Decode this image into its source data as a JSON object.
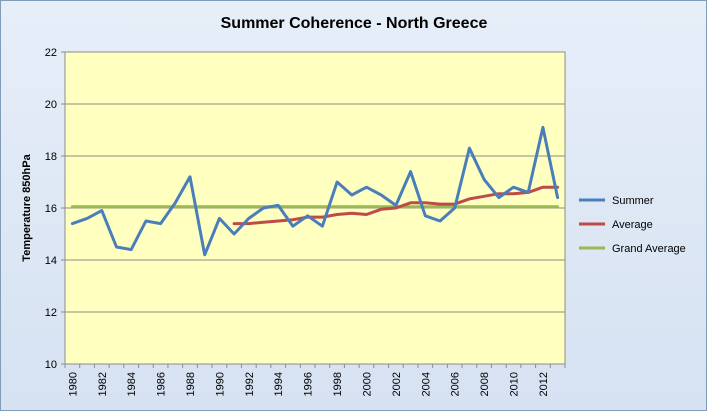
{
  "chart_data": {
    "type": "line",
    "title": "Summer Coherence - North Greece",
    "ylabel": "Temperature 850hPa",
    "xlabel": "",
    "ylim": [
      10,
      22
    ],
    "yticks": [
      "10",
      "12",
      "14",
      "16",
      "18",
      "20",
      "22"
    ],
    "x": [
      1980,
      1981,
      1982,
      1983,
      1984,
      1985,
      1986,
      1987,
      1988,
      1989,
      1990,
      1991,
      1992,
      1993,
      1994,
      1995,
      1996,
      1997,
      1998,
      1999,
      2000,
      2001,
      2002,
      2003,
      2004,
      2005,
      2006,
      2007,
      2008,
      2009,
      2010,
      2011,
      2012,
      2013
    ],
    "xtick_labels": [
      "1980",
      "1982",
      "1984",
      "1986",
      "1988",
      "1990",
      "1992",
      "1994",
      "1996",
      "1998",
      "2000",
      "2002",
      "2004",
      "2006",
      "2008",
      "2010",
      "2012"
    ],
    "series": [
      {
        "name": "Summer",
        "color": "#4a7ebb",
        "values": [
          15.4,
          15.6,
          15.9,
          14.5,
          14.4,
          15.5,
          15.4,
          16.2,
          17.2,
          14.2,
          15.6,
          15.0,
          15.6,
          16.0,
          16.1,
          15.3,
          15.7,
          15.3,
          17.0,
          16.5,
          16.8,
          16.5,
          16.1,
          17.4,
          15.7,
          15.5,
          16.0,
          18.3,
          17.1,
          16.4,
          16.8,
          16.6,
          19.1,
          16.4
        ]
      },
      {
        "name": "Average",
        "color": "#be4b48",
        "values": [
          null,
          null,
          null,
          null,
          null,
          null,
          null,
          null,
          null,
          null,
          null,
          15.4,
          15.4,
          15.45,
          15.5,
          15.55,
          15.65,
          15.65,
          15.75,
          15.8,
          15.75,
          15.95,
          16.0,
          16.2,
          16.2,
          16.15,
          16.15,
          16.35,
          16.45,
          16.55,
          16.55,
          16.6,
          16.8,
          16.8
        ]
      },
      {
        "name": "Grand Average",
        "color": "#98b954",
        "values": [
          16.05,
          16.05,
          16.05,
          16.05,
          16.05,
          16.05,
          16.05,
          16.05,
          16.05,
          16.05,
          16.05,
          16.05,
          16.05,
          16.05,
          16.05,
          16.05,
          16.05,
          16.05,
          16.05,
          16.05,
          16.05,
          16.05,
          16.05,
          16.05,
          16.05,
          16.05,
          16.05,
          16.05,
          16.05,
          16.05,
          16.05,
          16.05,
          16.05,
          16.05
        ]
      }
    ],
    "legend_position": "right",
    "grid": "horizontal"
  },
  "colors": {
    "plot_background": "#ffffc0",
    "chart_background": "#dce6f4",
    "gridline": "#8c8c8c"
  }
}
